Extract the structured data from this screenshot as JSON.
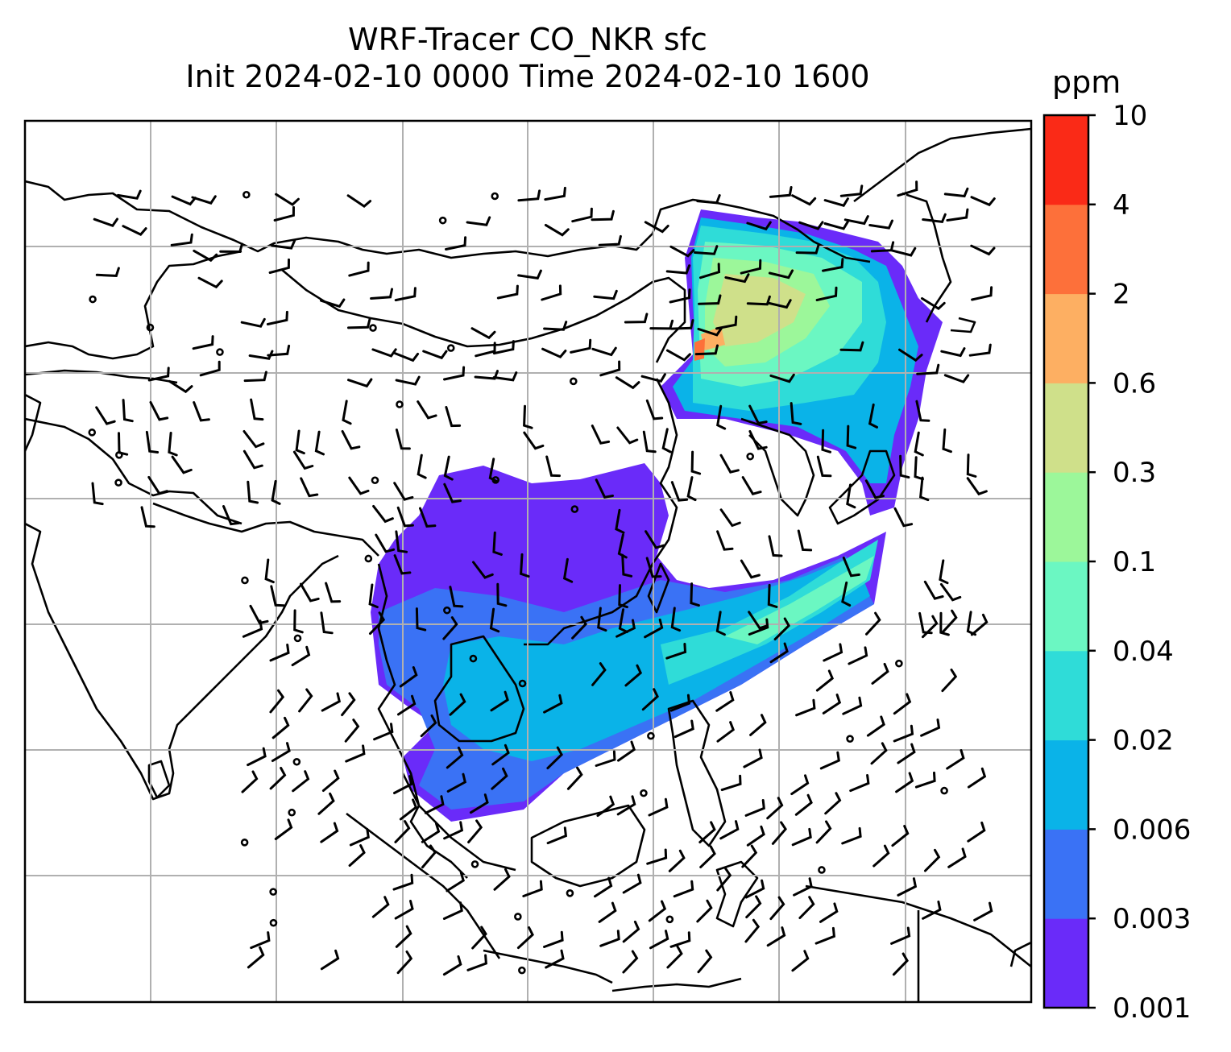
{
  "title": {
    "line1": "WRF-Tracer CO_NKR sfc",
    "line2": "Init 2024-02-10 0000 Time 2024-02-10 1600"
  },
  "colorbar": {
    "unit": "ppm",
    "levels": [
      "0.001",
      "0.003",
      "0.006",
      "0.02",
      "0.04",
      "0.1",
      "0.3",
      "0.6",
      "2",
      "4",
      "10"
    ],
    "colors": [
      "#6a2bf9",
      "#3a72f5",
      "#0ab3e8",
      "#2fdcd8",
      "#6bf7c2",
      "#9cf79a",
      "#cfe08a",
      "#fdaf62",
      "#fd703a",
      "#fa2a17"
    ]
  },
  "map": {
    "gridlines": true,
    "land_outline_color": "#000000",
    "plume_regions": [
      {
        "name": "northeast-china",
        "level_index": 3
      },
      {
        "name": "south-china-sea",
        "level_index": 2
      },
      {
        "name": "east-china-sea-arc",
        "level_index": 4
      },
      {
        "name": "southern-china",
        "level_index": 0
      }
    ]
  }
}
